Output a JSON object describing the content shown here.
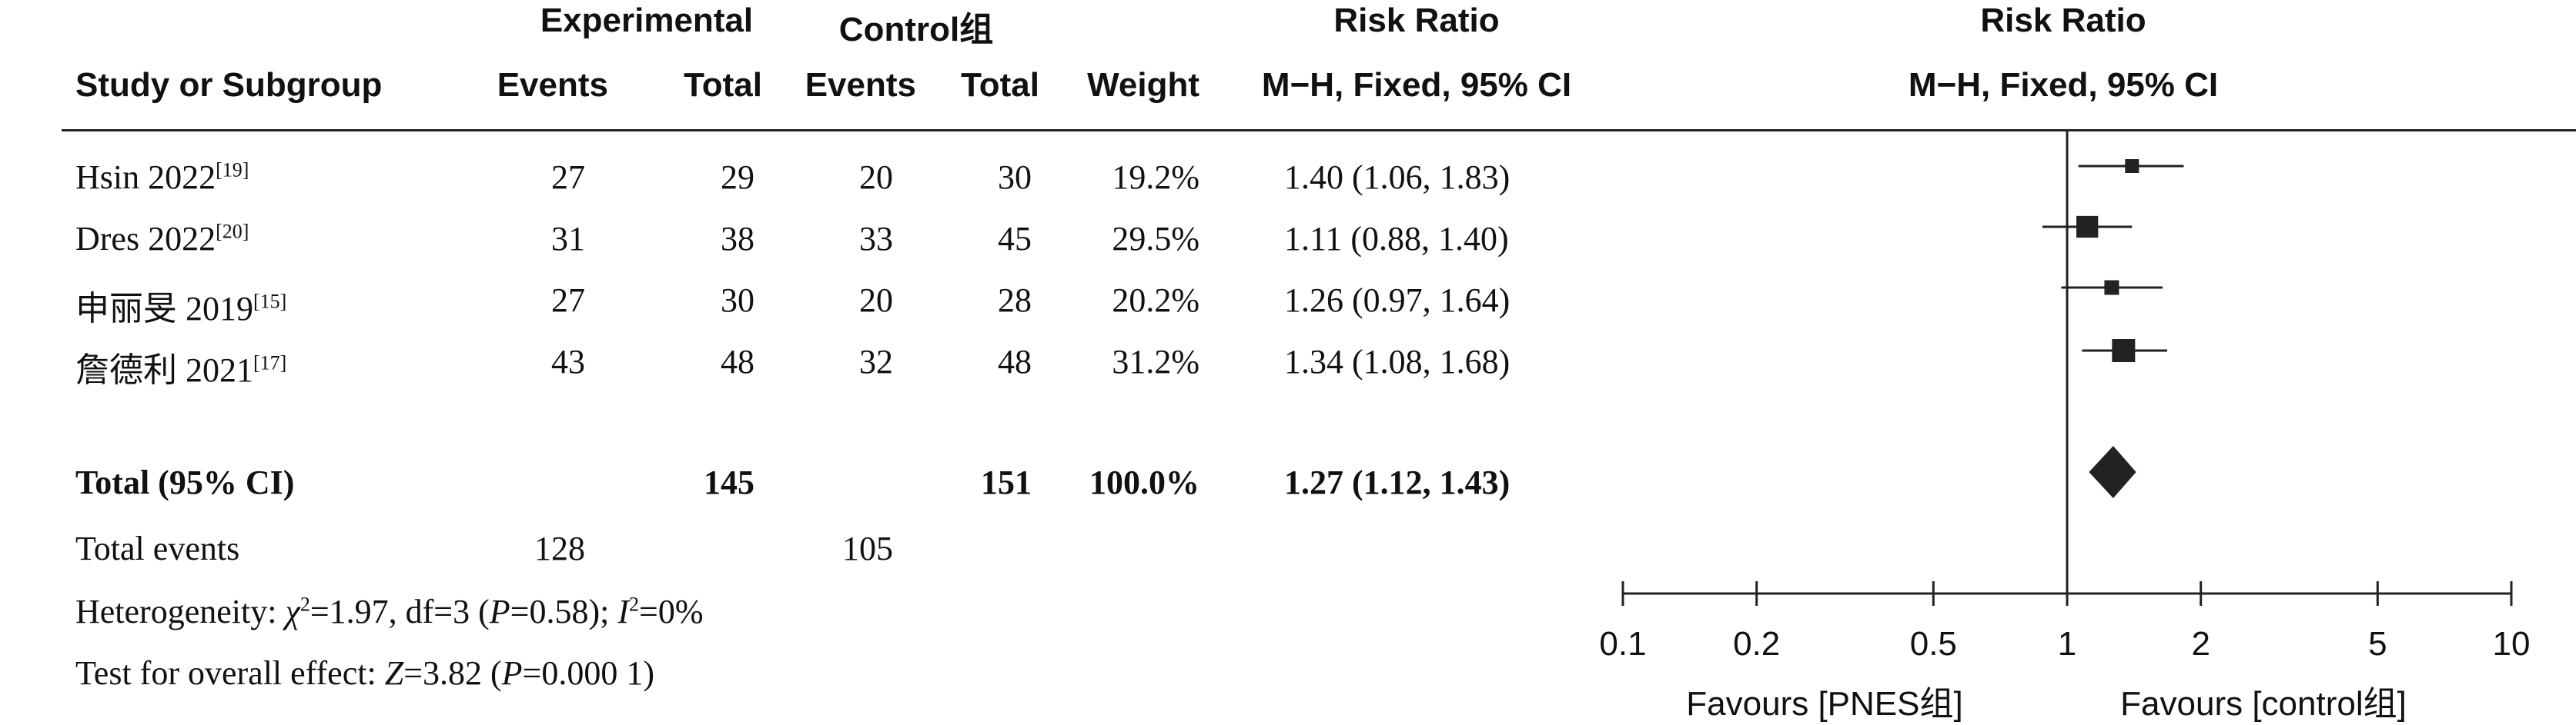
{
  "headers": {
    "experimental": "Experimental",
    "control": "Control组",
    "rr_group": "Risk Ratio",
    "study": "Study or Subgroup",
    "events": "Events",
    "total": "Total",
    "weight": "Weight",
    "rr_method": "M−H, Fixed, 95% CI",
    "plot_title": "Risk Ratio",
    "plot_method": "M−H, Fixed, 95% CI"
  },
  "studies": [
    {
      "name": "Hsin 2022",
      "ref": "[19]",
      "exp_events": "27",
      "exp_total": "29",
      "ctl_events": "20",
      "ctl_total": "30",
      "weight": "19.2%",
      "ci_text": "1.40 (1.06, 1.83)"
    },
    {
      "name": "Dres 2022",
      "ref": "[20]",
      "exp_events": "31",
      "exp_total": "38",
      "ctl_events": "33",
      "ctl_total": "45",
      "weight": "29.5%",
      "ci_text": "1.11 (0.88, 1.40)"
    },
    {
      "name": "申丽旻 2019",
      "ref": "[15]",
      "exp_events": "27",
      "exp_total": "30",
      "ctl_events": "20",
      "ctl_total": "28",
      "weight": "20.2%",
      "ci_text": "1.26 (0.97, 1.64)"
    },
    {
      "name": "詹德利 2021",
      "ref": "[17]",
      "exp_events": "43",
      "exp_total": "48",
      "ctl_events": "32",
      "ctl_total": "48",
      "weight": "31.2%",
      "ci_text": "1.34 (1.08, 1.68)"
    }
  ],
  "total": {
    "label": "Total (95% CI)",
    "exp_total": "145",
    "ctl_total": "151",
    "weight": "100.0%",
    "ci_text": "1.27 (1.12, 1.43)"
  },
  "total_events": {
    "label": "Total events",
    "exp": "128",
    "ctl": "105"
  },
  "heterogeneity": {
    "prefix": "Heterogeneity: ",
    "chi_symbol": "χ",
    "chi_value": "=1.97, df=3 (",
    "p_symbol": "P",
    "p_value": "=0.58); ",
    "i_symbol": "I",
    "i_value": "=0%"
  },
  "overall": {
    "prefix": "Test for overall effect: ",
    "z_symbol": "Z",
    "z_value": "=3.82 (",
    "p_symbol": "P",
    "p_value": "=0.000 1)"
  },
  "axis": {
    "ticks": [
      "0.1",
      "0.2",
      "0.5",
      "1",
      "2",
      "5",
      "10"
    ],
    "favours_left": "Favours [PNES组]",
    "favours_right": "Favours [control组]"
  },
  "chart_data": {
    "type": "forest",
    "scale": "log",
    "xlim": [
      0.1,
      10
    ],
    "null_value": 1,
    "studies": [
      {
        "name": "Hsin 2022",
        "rr": 1.4,
        "lower": 1.06,
        "upper": 1.83,
        "weight": 19.2
      },
      {
        "name": "Dres 2022",
        "rr": 1.11,
        "lower": 0.88,
        "upper": 1.4,
        "weight": 29.5
      },
      {
        "name": "申丽旻 2019",
        "rr": 1.26,
        "lower": 0.97,
        "upper": 1.64,
        "weight": 20.2
      },
      {
        "name": "詹德利 2021",
        "rr": 1.34,
        "lower": 1.08,
        "upper": 1.68,
        "weight": 31.2
      }
    ],
    "pooled": {
      "rr": 1.27,
      "lower": 1.12,
      "upper": 1.43
    },
    "colors": {
      "marker": "#222222",
      "line": "#222222"
    }
  }
}
